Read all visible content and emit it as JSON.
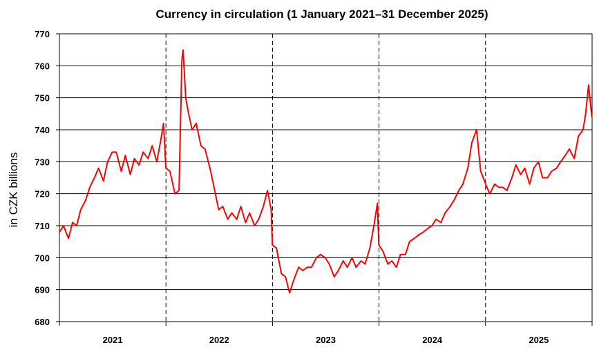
{
  "chart_data": {
    "type": "line",
    "title": "Currency in circulation (1 January 2021–31 December 2025)",
    "ylabel": "in CZK billions",
    "xlabel": "",
    "ylim": [
      680,
      770
    ],
    "yticks": [
      680,
      690,
      700,
      710,
      720,
      730,
      740,
      750,
      760,
      770
    ],
    "xlim": [
      "2021-01-01",
      "2025-12-31"
    ],
    "categories": [
      "2021",
      "2022",
      "2023",
      "2024",
      "2025"
    ],
    "grid": "horizontal solid gridlines; dashed vertical year separators",
    "legend": "none",
    "line_color": "#ff0000",
    "series": [
      {
        "x": [
          "2021-01-01",
          "2021-01-15",
          "2021-02-01",
          "2021-02-15",
          "2021-03-01",
          "2021-03-15",
          "2021-04-01",
          "2021-04-15",
          "2021-05-01",
          "2021-05-15",
          "2021-06-01",
          "2021-06-15",
          "2021-07-01",
          "2021-07-15",
          "2021-08-01",
          "2021-08-15",
          "2021-09-01",
          "2021-09-15",
          "2021-10-01",
          "2021-10-15",
          "2021-11-01",
          "2021-11-15",
          "2021-12-01",
          "2021-12-15",
          "2021-12-24",
          "2022-01-01",
          "2022-01-15",
          "2022-02-01",
          "2022-02-15",
          "2022-02-25",
          "2022-03-01",
          "2022-03-10",
          "2022-03-20",
          "2022-04-01",
          "2022-04-15",
          "2022-05-01",
          "2022-05-15",
          "2022-06-01",
          "2022-06-15",
          "2022-07-01",
          "2022-07-15",
          "2022-08-01",
          "2022-08-15",
          "2022-09-01",
          "2022-09-15",
          "2022-10-01",
          "2022-10-15",
          "2022-11-01",
          "2022-11-15",
          "2022-12-01",
          "2022-12-15",
          "2022-12-28",
          "2023-01-01",
          "2023-01-15",
          "2023-02-01",
          "2023-02-15",
          "2023-03-01",
          "2023-03-15",
          "2023-04-01",
          "2023-04-15",
          "2023-05-01",
          "2023-05-15",
          "2023-06-01",
          "2023-06-15",
          "2023-07-01",
          "2023-07-15",
          "2023-08-01",
          "2023-08-15",
          "2023-09-01",
          "2023-09-15",
          "2023-10-01",
          "2023-10-15",
          "2023-11-01",
          "2023-11-15",
          "2023-12-01",
          "2023-12-15",
          "2023-12-27",
          "2024-01-01",
          "2024-01-15",
          "2024-02-01",
          "2024-02-15",
          "2024-03-01",
          "2024-03-15",
          "2024-04-01",
          "2024-04-15",
          "2024-05-01",
          "2024-05-15",
          "2024-06-01",
          "2024-06-15",
          "2024-07-01",
          "2024-07-15",
          "2024-08-01",
          "2024-08-15",
          "2024-09-01",
          "2024-09-15",
          "2024-10-01",
          "2024-10-15",
          "2024-11-01",
          "2024-11-15",
          "2024-12-01",
          "2024-12-15",
          "2024-12-24",
          "2025-01-01",
          "2025-01-15",
          "2025-02-01",
          "2025-02-15",
          "2025-03-01",
          "2025-03-15",
          "2025-04-01",
          "2025-04-15",
          "2025-05-01",
          "2025-05-15",
          "2025-06-01",
          "2025-06-15",
          "2025-07-01",
          "2025-07-15",
          "2025-08-01",
          "2025-08-15",
          "2025-09-01",
          "2025-09-15",
          "2025-10-01",
          "2025-10-15",
          "2025-11-01",
          "2025-11-15",
          "2025-12-01",
          "2025-12-10",
          "2025-12-20",
          "2025-12-31"
        ],
        "values": [
          708,
          710,
          706,
          711,
          710,
          715,
          718,
          722,
          725,
          728,
          724,
          730,
          733,
          733,
          727,
          732,
          726,
          731,
          729,
          733,
          731,
          735,
          730,
          737,
          742,
          728,
          727,
          720,
          721,
          762,
          765,
          750,
          745,
          740,
          742,
          735,
          734,
          728,
          722,
          715,
          716,
          712,
          714,
          712,
          716,
          711,
          714,
          710,
          712,
          716,
          721,
          715,
          704,
          703,
          695,
          694,
          689,
          693,
          697,
          696,
          697,
          697,
          700,
          701,
          700,
          698,
          694,
          696,
          699,
          697,
          700,
          697,
          699,
          698,
          703,
          710,
          717,
          704,
          702,
          698,
          699,
          697,
          701,
          701,
          705,
          706,
          707,
          708,
          709,
          710,
          712,
          711,
          714,
          716,
          718,
          721,
          723,
          728,
          736,
          740,
          727,
          725,
          723,
          720,
          723,
          722,
          722,
          721,
          725,
          729,
          726,
          728,
          723,
          728,
          730,
          725,
          725,
          727,
          728,
          730,
          732,
          734,
          731,
          738,
          740,
          745,
          754,
          744
        ]
      }
    ]
  }
}
